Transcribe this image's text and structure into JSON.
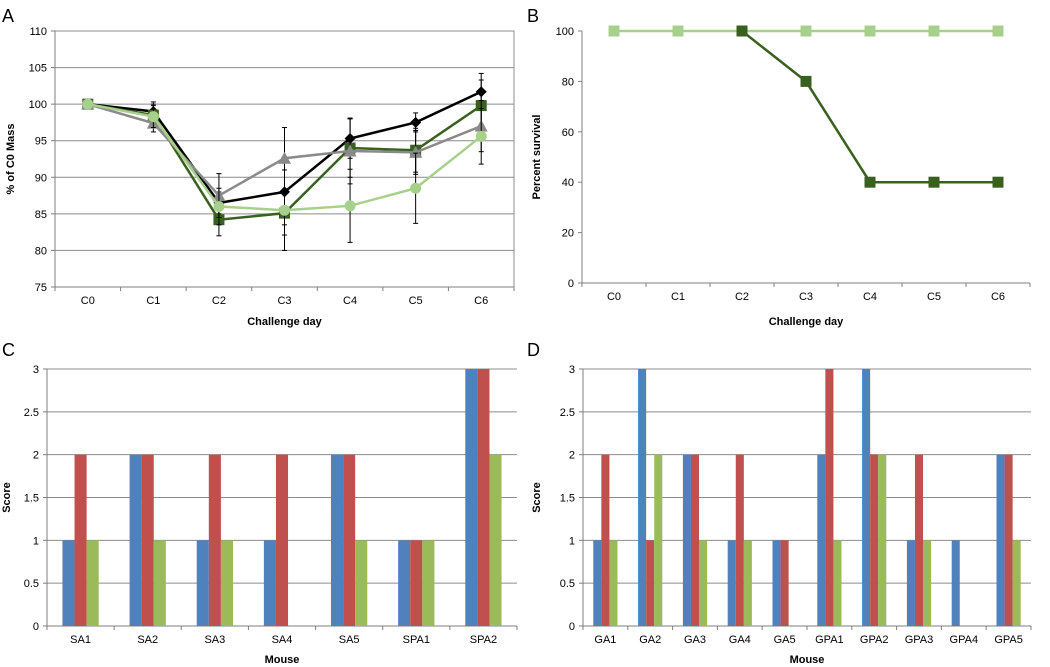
{
  "chart_data": [
    {
      "panel": "A",
      "type": "line",
      "xlabel": "Challenge day",
      "ylabel": "% of C0 Mass",
      "ylim": [
        75,
        110
      ],
      "yticks": [
        75,
        80,
        85,
        90,
        95,
        100,
        105,
        110
      ],
      "categories": [
        "C0",
        "C1",
        "C2",
        "C3",
        "C4",
        "C5",
        "C6"
      ],
      "grid": true,
      "series": [
        {
          "name": "black diamond",
          "color": "#000000",
          "marker": "diamond",
          "values": [
            100,
            99.0,
            86.5,
            88.0,
            95.3,
            97.5,
            101.7
          ],
          "errors": [
            0.5,
            1.3,
            1.5,
            4.5,
            2.7,
            1.3,
            2.5
          ]
        },
        {
          "name": "dark green square",
          "color": "#3a6020",
          "marker": "square",
          "values": [
            100,
            98.5,
            84.2,
            85.1,
            94.0,
            93.7,
            99.8
          ],
          "errors": [
            0.5,
            1.5,
            2.2,
            3.0,
            4.0,
            3.0,
            3.5
          ]
        },
        {
          "name": "gray triangle",
          "color": "#8a8a8a",
          "marker": "triangle",
          "values": [
            100,
            97.4,
            87.5,
            92.6,
            93.6,
            93.4,
            97.0
          ],
          "errors": [
            0.5,
            1.2,
            3.0,
            4.2,
            4.5,
            3.0,
            3.5
          ]
        },
        {
          "name": "light green circle",
          "color": "#a8d08d",
          "marker": "circle",
          "values": [
            100,
            98.3,
            86.0,
            85.5,
            86.1,
            88.5,
            95.6
          ],
          "errors": [
            0.5,
            1.5,
            2.5,
            5.5,
            5.0,
            4.8,
            3.8
          ]
        }
      ]
    },
    {
      "panel": "B",
      "type": "line",
      "xlabel": "Challenge day",
      "ylabel": "Percent survival",
      "ylim": [
        0,
        100
      ],
      "yticks": [
        0,
        20,
        40,
        60,
        80,
        100
      ],
      "categories": [
        "C0",
        "C1",
        "C2",
        "C3",
        "C4",
        "C5",
        "C6"
      ],
      "grid": false,
      "series": [
        {
          "name": "light green",
          "color": "#a8d08d",
          "marker": "square",
          "values": [
            100,
            100,
            100,
            100,
            100,
            100,
            100
          ]
        },
        {
          "name": "dark green",
          "color": "#3a6020",
          "marker": "square",
          "values": [
            null,
            null,
            100,
            80,
            40,
            40,
            40
          ]
        }
      ]
    },
    {
      "panel": "C",
      "type": "bar",
      "xlabel": "Mouse",
      "ylabel": "Score",
      "ylim": [
        0,
        3
      ],
      "yticks": [
        "0",
        "0.5",
        "1",
        "1.5",
        "2",
        "2.5",
        "3"
      ],
      "categories": [
        "SA1",
        "SA2",
        "SA3",
        "SA4",
        "SA5",
        "SPA1",
        "SPA2"
      ],
      "grid": true,
      "series": [
        {
          "name": "blue",
          "color": "#4f81bd",
          "values": [
            1,
            2,
            1,
            1,
            2,
            1,
            3
          ]
        },
        {
          "name": "red",
          "color": "#c0504d",
          "values": [
            2,
            2,
            2,
            2,
            2,
            1,
            3
          ]
        },
        {
          "name": "green",
          "color": "#9bbb59",
          "values": [
            1,
            1,
            1,
            0,
            1,
            1,
            2
          ]
        }
      ]
    },
    {
      "panel": "D",
      "type": "bar",
      "xlabel": "Mouse",
      "ylabel": "Score",
      "ylim": [
        0,
        3
      ],
      "yticks": [
        "0",
        "0.5",
        "1",
        "1.5",
        "2",
        "2.5",
        "3"
      ],
      "categories": [
        "GA1",
        "GA2",
        "GA3",
        "GA4",
        "GA5",
        "GPA1",
        "GPA2",
        "GPA3",
        "GPA4",
        "GPA5"
      ],
      "grid": true,
      "series": [
        {
          "name": "blue",
          "color": "#4f81bd",
          "values": [
            1,
            3,
            2,
            1,
            1,
            2,
            3,
            1,
            1,
            2
          ]
        },
        {
          "name": "red",
          "color": "#c0504d",
          "values": [
            2,
            1,
            2,
            2,
            1,
            3,
            2,
            2,
            0,
            2
          ]
        },
        {
          "name": "green",
          "color": "#9bbb59",
          "values": [
            1,
            2,
            1,
            1,
            0,
            1,
            2,
            1,
            0,
            1
          ]
        }
      ]
    }
  ]
}
